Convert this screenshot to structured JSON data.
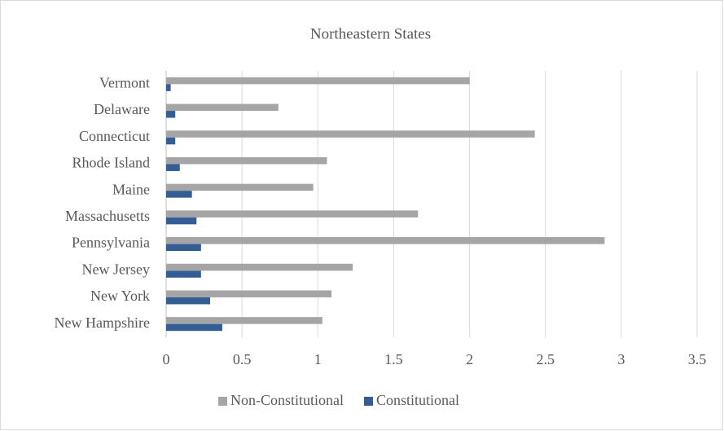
{
  "chart_data": {
    "type": "hbar",
    "title": "Northeastern States",
    "categories": [
      "New Hampshire",
      "New York",
      "New Jersey",
      "Pennsylvania",
      "Massachusetts",
      "Maine",
      "Rhode Island",
      "Connecticut",
      "Delaware",
      "Vermont"
    ],
    "series": [
      {
        "name": "Non-Constitutional",
        "color": "#a5a5a5",
        "values": [
          1.03,
          1.09,
          1.23,
          2.89,
          1.66,
          0.97,
          1.06,
          2.43,
          0.74,
          2.0
        ]
      },
      {
        "name": "Constitutional",
        "color": "#335e95",
        "values": [
          0.37,
          0.29,
          0.23,
          0.23,
          0.2,
          0.17,
          0.09,
          0.06,
          0.06,
          0.03
        ]
      }
    ],
    "xlim": [
      0,
      3.5
    ],
    "xticks": [
      0,
      0.5,
      1,
      1.5,
      2,
      2.5,
      3,
      3.5
    ],
    "grid": true,
    "legend": "bottom"
  }
}
